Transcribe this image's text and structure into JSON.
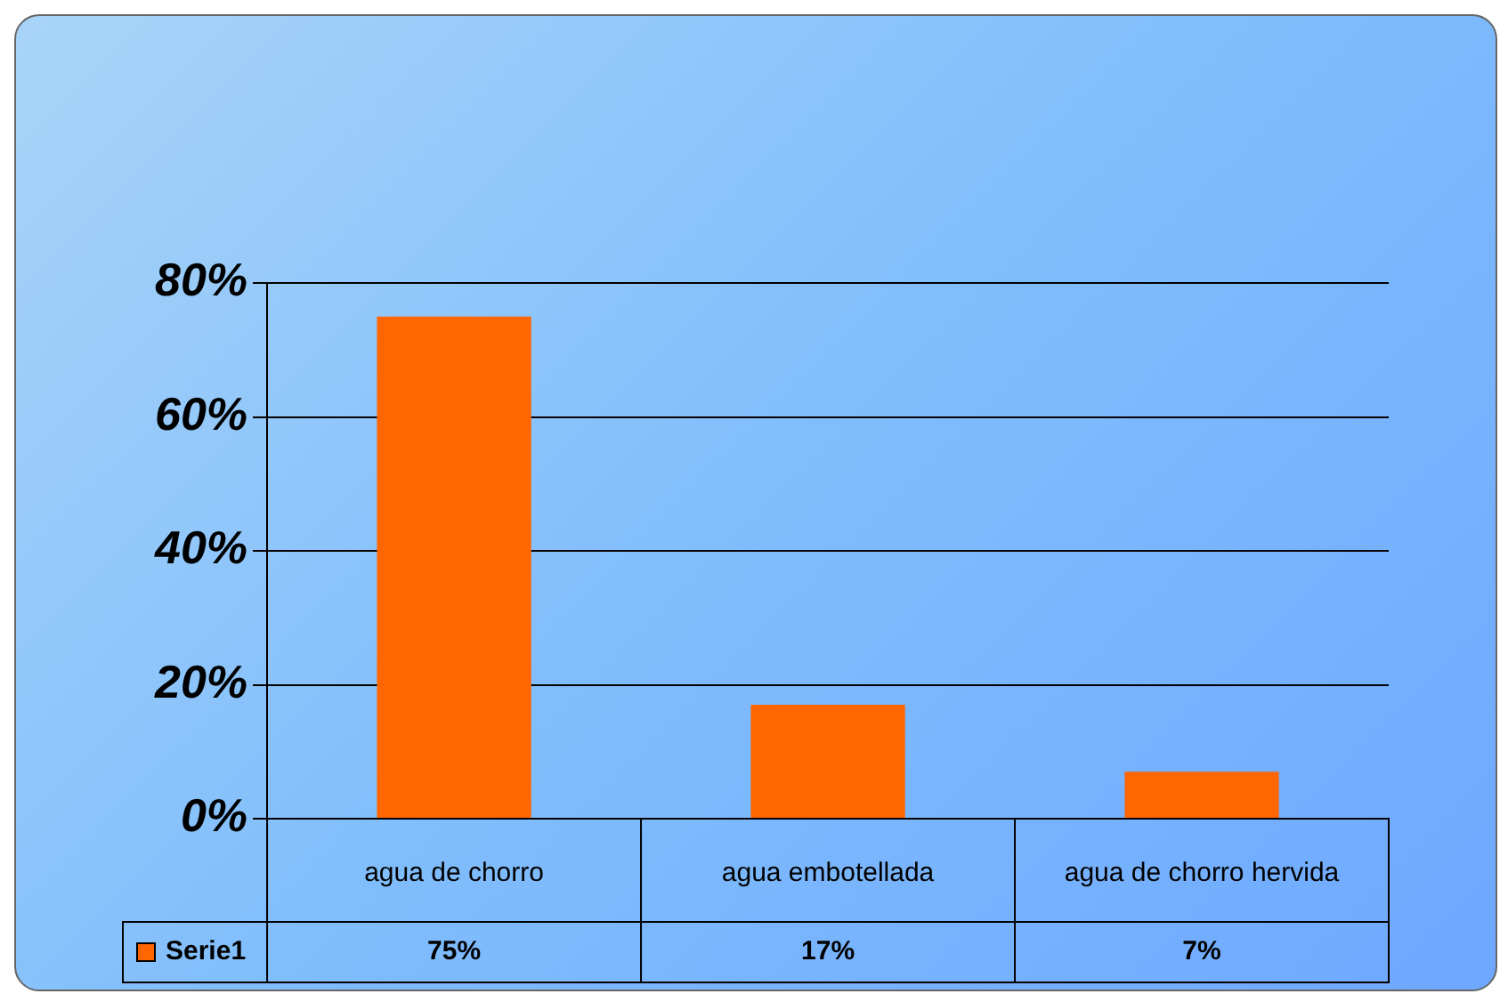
{
  "chart_data": {
    "type": "bar",
    "categories": [
      "agua de chorro",
      "agua embotellada",
      "agua de chorro hervida"
    ],
    "series": [
      {
        "name": "Serie1",
        "color": "#ff6600",
        "values": [
          75,
          17,
          7
        ],
        "value_labels": [
          "75%",
          "17%",
          "7%"
        ]
      }
    ],
    "ylim": [
      0,
      80
    ],
    "yticks": [
      {
        "value": 0,
        "label": "0%"
      },
      {
        "value": 20,
        "label": "20%"
      },
      {
        "value": 40,
        "label": "40%"
      },
      {
        "value": 60,
        "label": "60%"
      },
      {
        "value": 80,
        "label": "80%"
      }
    ],
    "grid": "y",
    "legend": "bottom left"
  }
}
